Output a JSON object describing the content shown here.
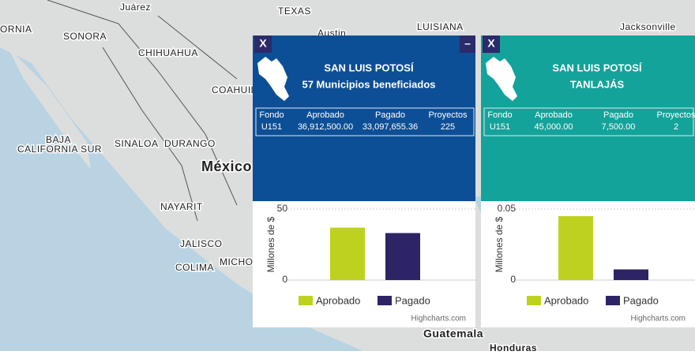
{
  "map": {
    "labels": [
      "Juárez",
      "TEXAS",
      "Austin",
      "LUISIANA",
      "Jacksonville",
      "ORNIA",
      "SONORA",
      "CHIHUAHUA",
      "COAHUILA",
      "BAJA",
      "CALIFORNIA SUR",
      "SINALOA",
      "DURANGO",
      "México",
      "NAYARIT",
      "JALISCO",
      "COLIMA",
      "MICHO",
      "Guatemala",
      "Honduras"
    ]
  },
  "panels": [
    {
      "close": "X",
      "minimize": "–",
      "title": "SAN LUIS POTOSÍ",
      "subtitle": "57 Municipios beneficiados",
      "table": {
        "header": [
          "Fondo",
          "Aprobado",
          "Pagado",
          "Proyectos"
        ],
        "rows": [
          [
            "U151",
            "36,912,500.00",
            "33,097,655.36",
            "225"
          ]
        ]
      },
      "chart": {
        "type": "bar",
        "y_label": "Millones de $",
        "ylim": [
          0,
          50
        ],
        "yticks": [
          0,
          50
        ],
        "credits": "Highcharts.com",
        "series": [
          {
            "name": "Aprobado",
            "color": "#bdd21e",
            "values": [
              36.9
            ]
          },
          {
            "name": "Pagado",
            "color": "#2d2466",
            "values": [
              33.1
            ]
          }
        ]
      }
    },
    {
      "close": "X",
      "title": "SAN LUIS POTOSÍ",
      "subtitle": "TANLAJÁS",
      "table": {
        "header": [
          "Fondo",
          "Aprobado",
          "Pagado",
          "Proyectos"
        ],
        "rows": [
          [
            "U151",
            "45,000.00",
            "7,500.00",
            "2"
          ]
        ]
      },
      "chart": {
        "type": "bar",
        "y_label": "Millones de $",
        "ylim": [
          0,
          0.05
        ],
        "yticks": [
          0,
          0.05
        ],
        "credits": "Highcharts.com",
        "series": [
          {
            "name": "Aprobado",
            "color": "#bdd21e",
            "values": [
              0.045
            ]
          },
          {
            "name": "Pagado",
            "color": "#2d2466",
            "values": [
              0.0075
            ]
          }
        ]
      }
    }
  ]
}
